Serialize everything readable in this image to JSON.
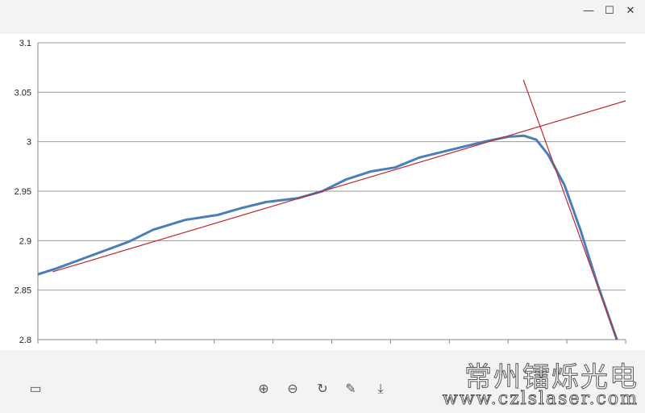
{
  "window": {
    "minimize": "—",
    "maximize": "☐",
    "close": "✕"
  },
  "watermark": {
    "cn": "常州镭烁光电",
    "url": "www.czlslaser.com"
  },
  "toolbar": [
    {
      "icon": "layout-icon",
      "glyph": "▭"
    },
    {
      "icon": "zoom-in-icon",
      "glyph": "⊕"
    },
    {
      "icon": "zoom-out-icon",
      "glyph": "⊖"
    },
    {
      "icon": "rotate-icon",
      "glyph": "↻"
    },
    {
      "icon": "pen-icon",
      "glyph": "✎"
    },
    {
      "icon": "download-icon",
      "glyph": "⤓"
    }
  ],
  "chart_data": {
    "type": "line",
    "ylim": [
      2.8,
      3.1
    ],
    "yticks": [
      "2.8",
      "2.85",
      "2.9",
      "2.95",
      "3",
      "3.05",
      "3.1"
    ],
    "xlim": [
      0,
      100
    ],
    "grid": "horizontal",
    "colors": {
      "data": "#4a7ebb",
      "fit": "#c0272d"
    },
    "series": [
      {
        "x": [
          0,
          3.2,
          7.3,
          11.4,
          15.5,
          19.6,
          25.1,
          30.6,
          34.7,
          38.8,
          44.3,
          48.4,
          52.5,
          56.7,
          60.8,
          64.9,
          70.4,
          75.9,
          80,
          82.7,
          84.8,
          86.8,
          89.6,
          92.3,
          95.1,
          98.5
        ],
        "y": [
          2.866,
          2.872,
          2.881,
          2.89,
          2.899,
          2.911,
          2.921,
          2.926,
          2.933,
          2.939,
          2.943,
          2.95,
          2.962,
          2.97,
          2.974,
          2.984,
          2.992,
          3.0,
          3.005,
          3.006,
          3.002,
          2.987,
          2.956,
          2.911,
          2.858,
          2.8
        ]
      },
      {
        "x": [
          2.5,
          100
        ],
        "y": [
          2.8685,
          3.0413
        ]
      },
      {
        "x": [
          82.6,
          98.5
        ],
        "y": [
          3.0625,
          2.8
        ]
      }
    ]
  }
}
